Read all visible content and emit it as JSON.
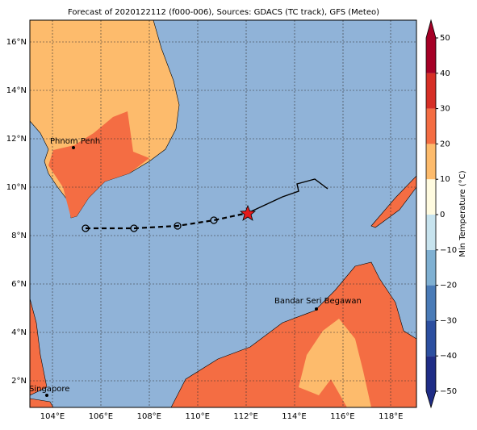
{
  "title": "Forecast of 2020122112 (f000-006), Sources: GDACS (TC track), GFS (Meteo)",
  "lon_labels": [
    "104°E",
    "106°E",
    "108°E",
    "110°E",
    "112°E",
    "114°E",
    "116°E",
    "118°E"
  ],
  "lat_labels": [
    "2°N",
    "4°N",
    "6°N",
    "8°N",
    "10°N",
    "12°N",
    "14°N",
    "16°N"
  ],
  "cities": [
    "Phnom Penh",
    "Bandar Seri Begawan",
    "Singapore"
  ],
  "colorbar": {
    "label": "Min Temperature (°C)",
    "ticks": [
      {
        "value": -50,
        "label": "−50"
      },
      {
        "value": -40,
        "label": "−40"
      },
      {
        "value": -30,
        "label": "−30"
      },
      {
        "value": -20,
        "label": "−20"
      },
      {
        "value": -10,
        "label": "−10"
      },
      0,
      10,
      20,
      30,
      40,
      50
    ],
    "colors": [
      "#1f2d86",
      "#2c4fa0",
      "#4a7bb7",
      "#7fb0d2",
      "#c7e3ee",
      "#fffbe0",
      "#fdbb6c",
      "#f46d43",
      "#d62f26",
      "#a50026"
    ]
  }
}
